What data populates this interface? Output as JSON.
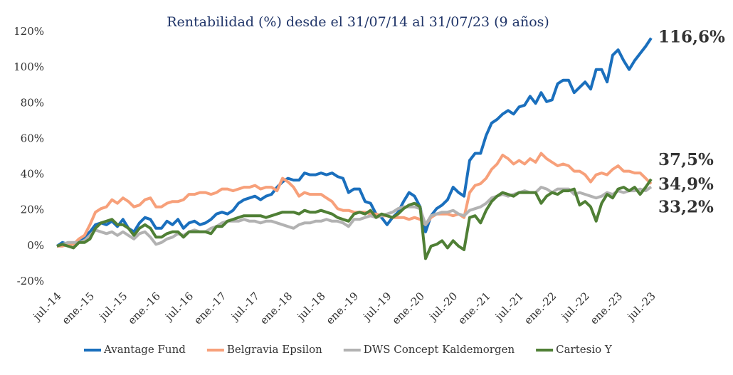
{
  "chart_data": {
    "type": "line",
    "title": "Rentabilidad (%) desde el 31/07/14 al 31/07/23 (9 años)",
    "categories": [
      "jul.-14",
      null,
      null,
      null,
      null,
      null,
      "ene.-15",
      null,
      null,
      null,
      null,
      null,
      "jul.-15",
      null,
      null,
      null,
      null,
      null,
      "ene.-16",
      null,
      null,
      null,
      null,
      null,
      "jul.-16",
      null,
      null,
      null,
      null,
      null,
      "ene.-17",
      null,
      null,
      null,
      null,
      null,
      "jul.-17",
      null,
      null,
      null,
      null,
      null,
      "ene.-18",
      null,
      null,
      null,
      null,
      null,
      "jul.-18",
      null,
      null,
      null,
      null,
      null,
      "ene.-19",
      null,
      null,
      null,
      null,
      null,
      "jul.-19",
      null,
      null,
      null,
      null,
      null,
      "ene.-20",
      null,
      null,
      null,
      null,
      null,
      "jul.-20",
      null,
      null,
      null,
      null,
      null,
      "ene.-21",
      null,
      null,
      null,
      null,
      null,
      "jul.-21",
      null,
      null,
      null,
      null,
      null,
      "ene.-22",
      null,
      null,
      null,
      null,
      null,
      "jul.-22",
      null,
      null,
      null,
      null,
      null,
      "ene.-23",
      null,
      null,
      null,
      null,
      null,
      "jul.-23"
    ],
    "ylim": [
      -20,
      120
    ],
    "yticks": [
      {
        "value": -20,
        "label": "-20%"
      },
      {
        "value": 0,
        "label": "0%"
      },
      {
        "value": 20,
        "label": "20%"
      },
      {
        "value": 40,
        "label": "40%"
      },
      {
        "value": 60,
        "label": "60%"
      },
      {
        "value": 80,
        "label": "80%"
      },
      {
        "value": 100,
        "label": "100%"
      },
      {
        "value": 120,
        "label": "120%"
      }
    ],
    "grid": false,
    "legend": "bottom",
    "series": [
      {
        "name": "Avantage Fund",
        "color": "#1a6fbd",
        "label_color": "#2b4f91",
        "values": [
          0,
          2,
          1,
          1,
          3,
          5,
          8,
          12,
          13,
          12,
          14,
          11,
          15,
          10,
          8,
          13,
          16,
          15,
          10,
          10,
          14,
          12,
          15,
          10,
          13,
          14,
          12,
          13,
          15,
          18,
          19,
          18,
          20,
          24,
          26,
          27,
          28,
          26,
          28,
          29,
          33,
          36,
          38,
          37,
          37,
          41,
          40,
          40,
          41,
          40,
          41,
          39,
          38,
          30,
          32,
          32,
          25,
          24,
          18,
          16,
          12,
          16,
          19,
          25,
          30,
          28,
          22,
          8,
          17,
          21,
          23,
          26,
          33,
          30,
          28,
          48,
          52,
          52,
          62,
          69,
          71,
          74,
          76,
          74,
          78,
          79,
          84,
          80,
          86,
          81,
          82,
          91,
          93,
          93,
          86,
          89,
          92,
          88,
          99,
          99,
          92,
          107,
          110,
          104,
          99,
          104,
          108,
          112,
          116.6
        ],
        "value_labels": {
          "108": "116,6%"
        }
      },
      {
        "name": "Belgravia Epsilon",
        "color": "#f7a07a",
        "label_color": "#c55a11",
        "values": [
          0,
          0,
          1,
          1,
          4,
          6,
          12,
          19,
          21,
          22,
          26,
          24,
          27,
          25,
          22,
          23,
          26,
          27,
          22,
          22,
          24,
          25,
          25,
          26,
          29,
          29,
          30,
          30,
          29,
          30,
          32,
          32,
          31,
          32,
          33,
          33,
          34,
          32,
          33,
          33,
          31,
          38,
          36,
          33,
          28,
          30,
          29,
          29,
          29,
          27,
          25,
          21,
          20,
          20,
          19,
          19,
          19,
          18,
          18,
          17,
          17,
          16,
          16,
          16,
          15,
          16,
          15,
          12,
          16,
          18,
          18,
          18,
          17,
          18,
          16,
          30,
          34,
          35,
          38,
          43,
          46,
          51,
          49,
          46,
          48,
          46,
          49,
          47,
          52,
          49,
          47,
          45,
          46,
          45,
          42,
          42,
          40,
          36,
          40,
          41,
          40,
          43,
          45,
          42,
          42,
          41,
          41,
          38,
          34.9
        ],
        "value_labels": {
          "108": "34,9%"
        }
      },
      {
        "name": "DWS Concept Kaldemorgen",
        "color": "#b2b2b2",
        "label_color": "#8c8c8c",
        "values": [
          0,
          1,
          2,
          2,
          2,
          3,
          6,
          9,
          8,
          7,
          8,
          6,
          8,
          6,
          4,
          7,
          8,
          5,
          1,
          2,
          4,
          5,
          7,
          6,
          8,
          9,
          8,
          8,
          10,
          11,
          13,
          14,
          14,
          14,
          15,
          14,
          14,
          13,
          14,
          14,
          13,
          12,
          11,
          10,
          12,
          13,
          13,
          14,
          14,
          15,
          14,
          14,
          13,
          11,
          15,
          15,
          16,
          17,
          16,
          17,
          18,
          19,
          21,
          22,
          22,
          22,
          21,
          12,
          17,
          18,
          19,
          19,
          20,
          18,
          17,
          20,
          21,
          22,
          24,
          27,
          28,
          29,
          28,
          29,
          30,
          31,
          30,
          30,
          33,
          32,
          30,
          32,
          32,
          32,
          29,
          30,
          29,
          28,
          27,
          28,
          30,
          29,
          31,
          30,
          31,
          31,
          32,
          31,
          33.2
        ],
        "value_labels": {
          "108": "33,2%"
        }
      },
      {
        "name": "Cartesio Y",
        "color": "#4f7f35",
        "label_color": "#4e7a2f",
        "values": [
          0,
          1,
          0,
          -1,
          2,
          2,
          4,
          10,
          13,
          14,
          15,
          12,
          12,
          10,
          6,
          10,
          12,
          10,
          5,
          5,
          7,
          8,
          8,
          5,
          8,
          8,
          8,
          8,
          7,
          11,
          11,
          14,
          15,
          16,
          17,
          17,
          17,
          17,
          16,
          17,
          18,
          19,
          19,
          19,
          18,
          20,
          19,
          19,
          20,
          19,
          18,
          16,
          15,
          14,
          18,
          19,
          18,
          20,
          16,
          18,
          17,
          16,
          18,
          21,
          23,
          24,
          22,
          -7,
          0,
          1,
          3,
          -1,
          3,
          0,
          -2,
          16,
          17,
          13,
          20,
          25,
          28,
          30,
          29,
          28,
          30,
          30,
          30,
          30,
          24,
          28,
          30,
          29,
          31,
          31,
          32,
          23,
          25,
          22,
          14,
          24,
          29,
          27,
          32,
          33,
          31,
          33,
          29,
          33,
          37.5
        ],
        "value_labels": {
          "108": "37,5%"
        }
      }
    ]
  }
}
